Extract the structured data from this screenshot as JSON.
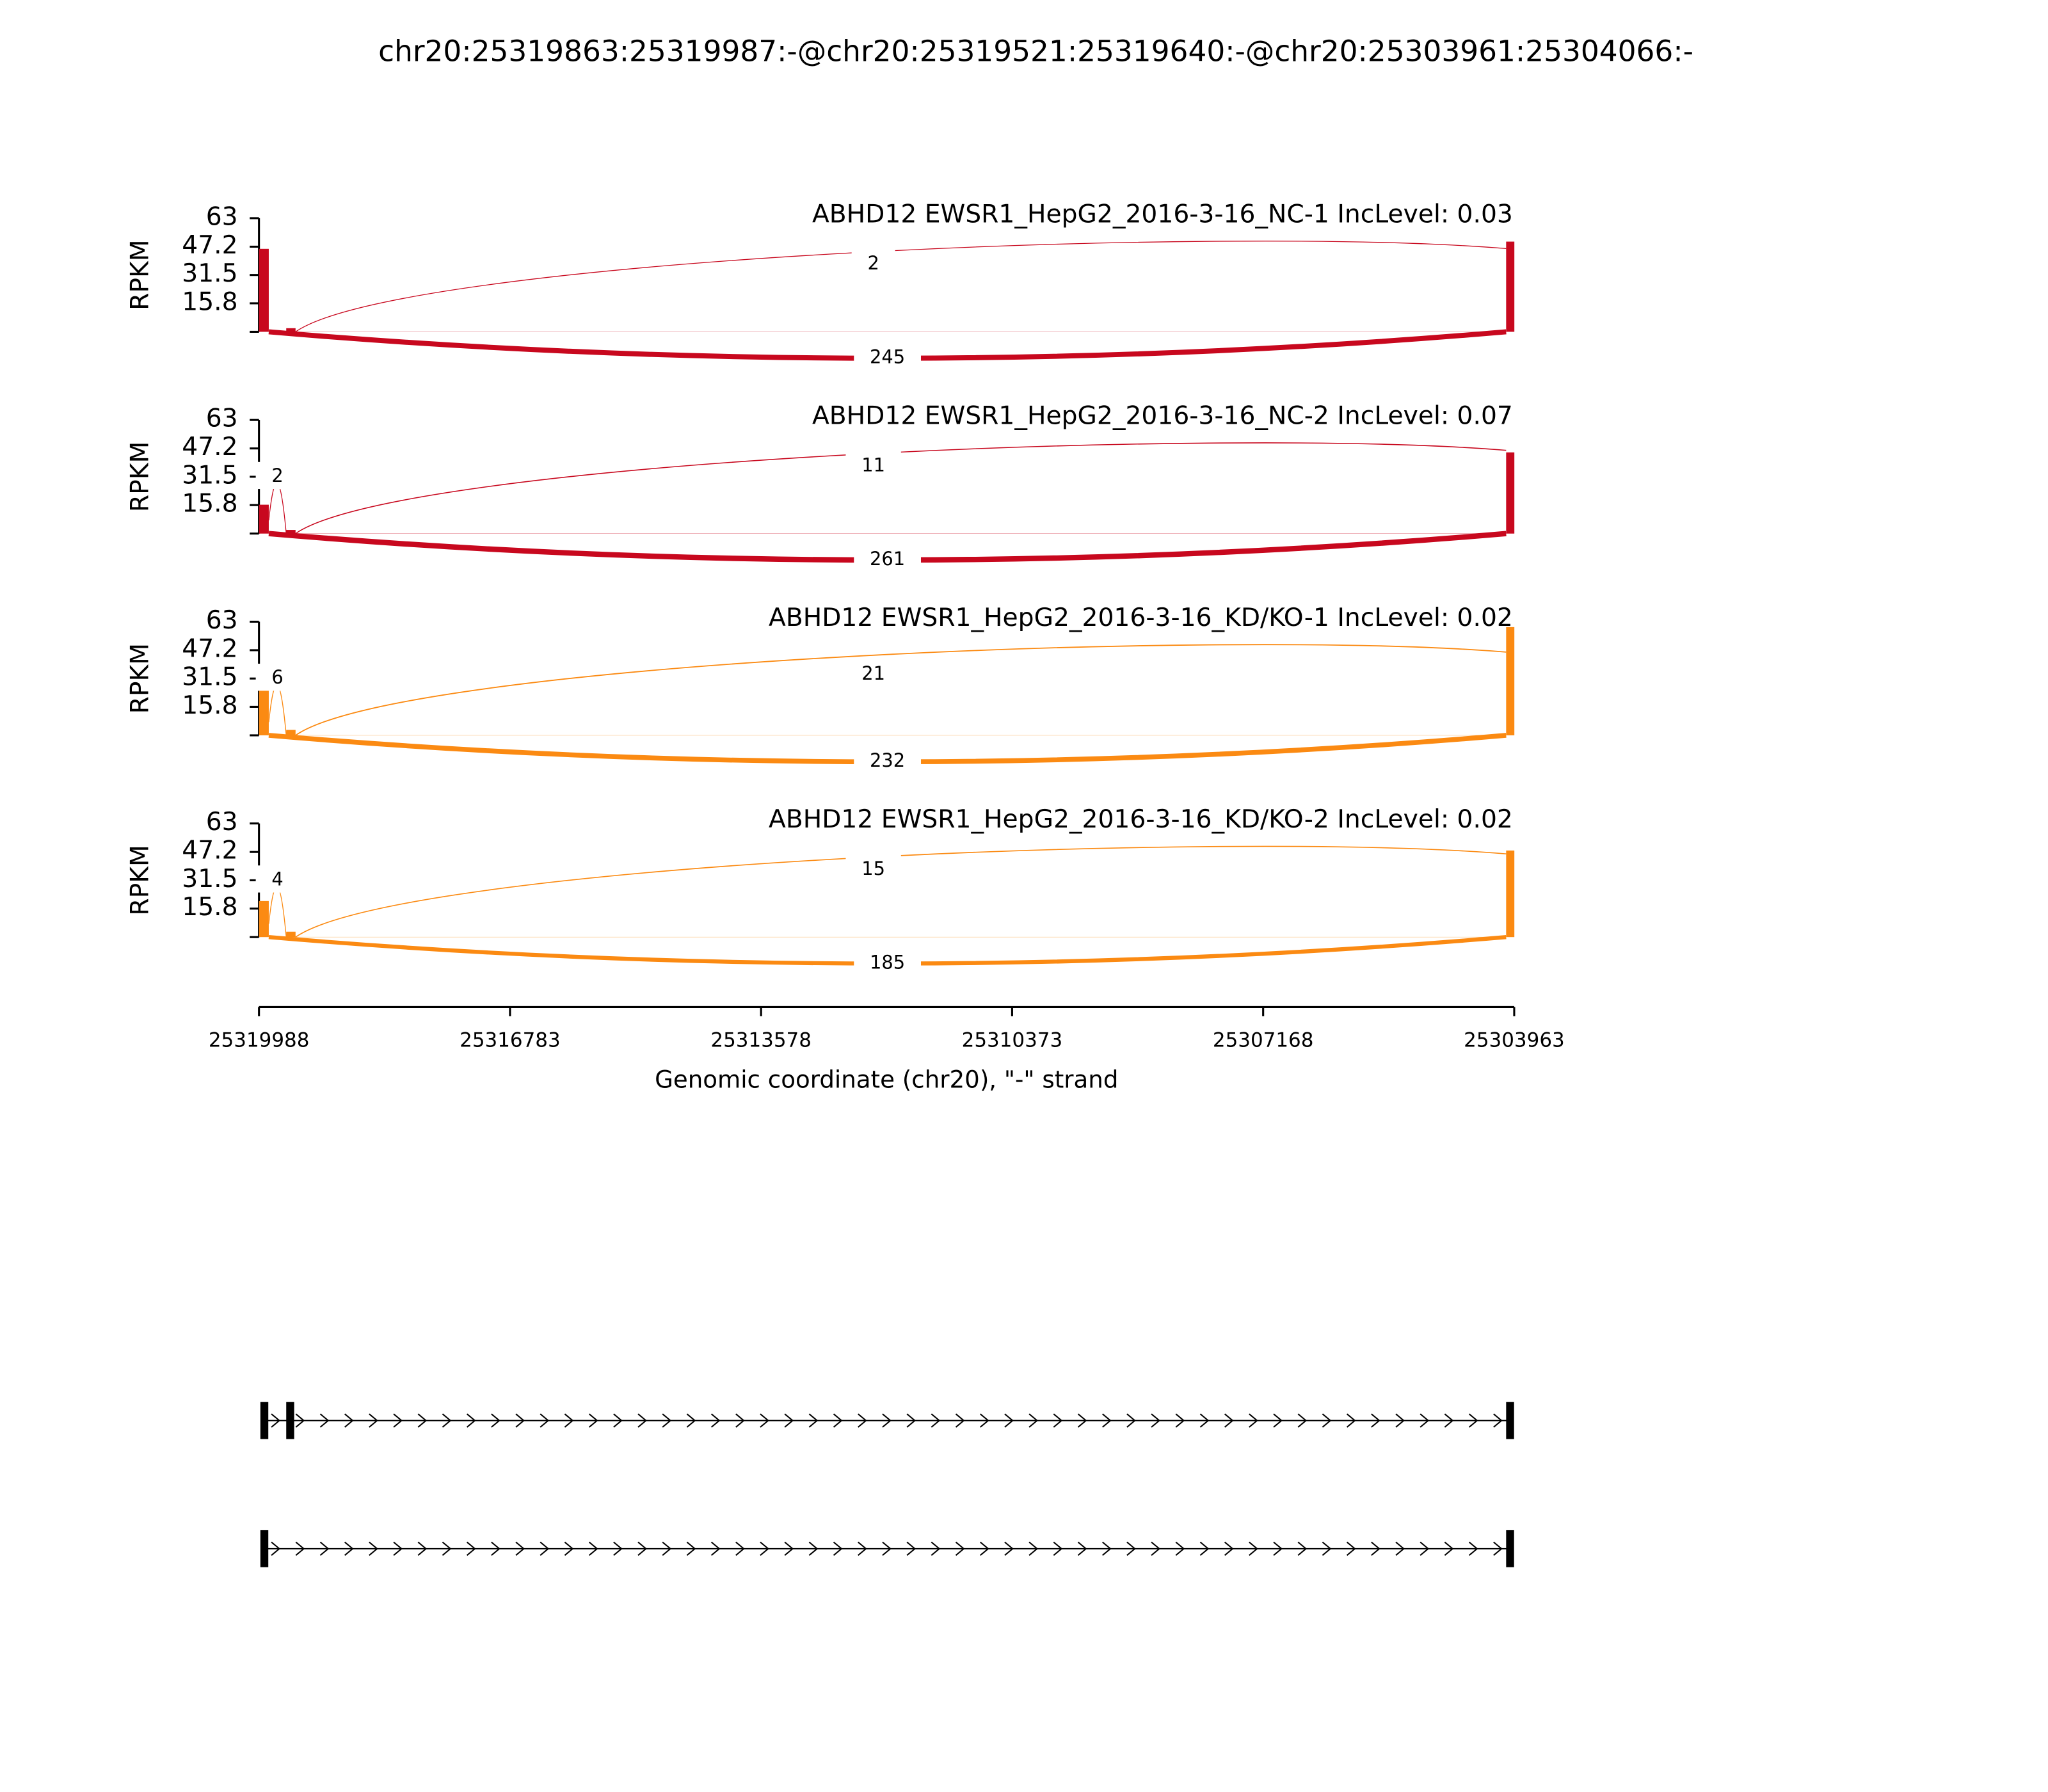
{
  "chart_data": {
    "type": "sashimi",
    "title": "chr20:25319863:25319987:-@chr20:25319521:25319640:-@chr20:25303961:25304066:-",
    "xlabel": "Genomic coordinate (chr20), \"-\" strand",
    "xlim": [
      25319988,
      25303963
    ],
    "xticks": [
      25319988,
      25316783,
      25313578,
      25310373,
      25307168,
      25303963
    ],
    "exons": [
      [
        25319863,
        25319987
      ],
      [
        25319521,
        25319640
      ],
      [
        25303961,
        25304066
      ]
    ],
    "panels": [
      {
        "name": "ABHD12 EWSR1_HepG2_2016-3-16_NC-1 IncLevel: 0.03",
        "color": "#c8081e",
        "ylabel": "RPKM",
        "ylim": [
          0,
          63
        ],
        "yticks": [
          15.8,
          31.5,
          47.2,
          63
        ],
        "coverage": [
          46,
          2,
          50
        ],
        "junctions": {
          "downstream": 2,
          "skipping": 245
        }
      },
      {
        "name": "ABHD12 EWSR1_HepG2_2016-3-16_NC-2 IncLevel: 0.07",
        "color": "#c8081e",
        "ylabel": "RPKM",
        "ylim": [
          0,
          63
        ],
        "yticks": [
          15.8,
          31.5,
          47.2,
          63
        ],
        "coverage": [
          16,
          2,
          45
        ],
        "junctions": {
          "upstream": 2,
          "downstream": 11,
          "skipping": 261
        }
      },
      {
        "name": "ABHD12 EWSR1_HepG2_2016-3-16_KD/KO-1 IncLevel: 0.02",
        "color": "#fb8a12",
        "ylabel": "RPKM",
        "ylim": [
          0,
          63
        ],
        "yticks": [
          15.8,
          31.5,
          47.2,
          63
        ],
        "coverage": [
          28,
          3,
          60
        ],
        "junctions": {
          "upstream": 6,
          "downstream": 21,
          "skipping": 232
        }
      },
      {
        "name": "ABHD12 EWSR1_HepG2_2016-3-16_KD/KO-2 IncLevel: 0.02",
        "color": "#fb8a12",
        "ylabel": "RPKM",
        "ylim": [
          0,
          63
        ],
        "yticks": [
          15.8,
          31.5,
          47.2,
          63
        ],
        "coverage": [
          20,
          3,
          48
        ],
        "junctions": {
          "upstream": 4,
          "downstream": 15,
          "skipping": 185
        }
      }
    ]
  }
}
